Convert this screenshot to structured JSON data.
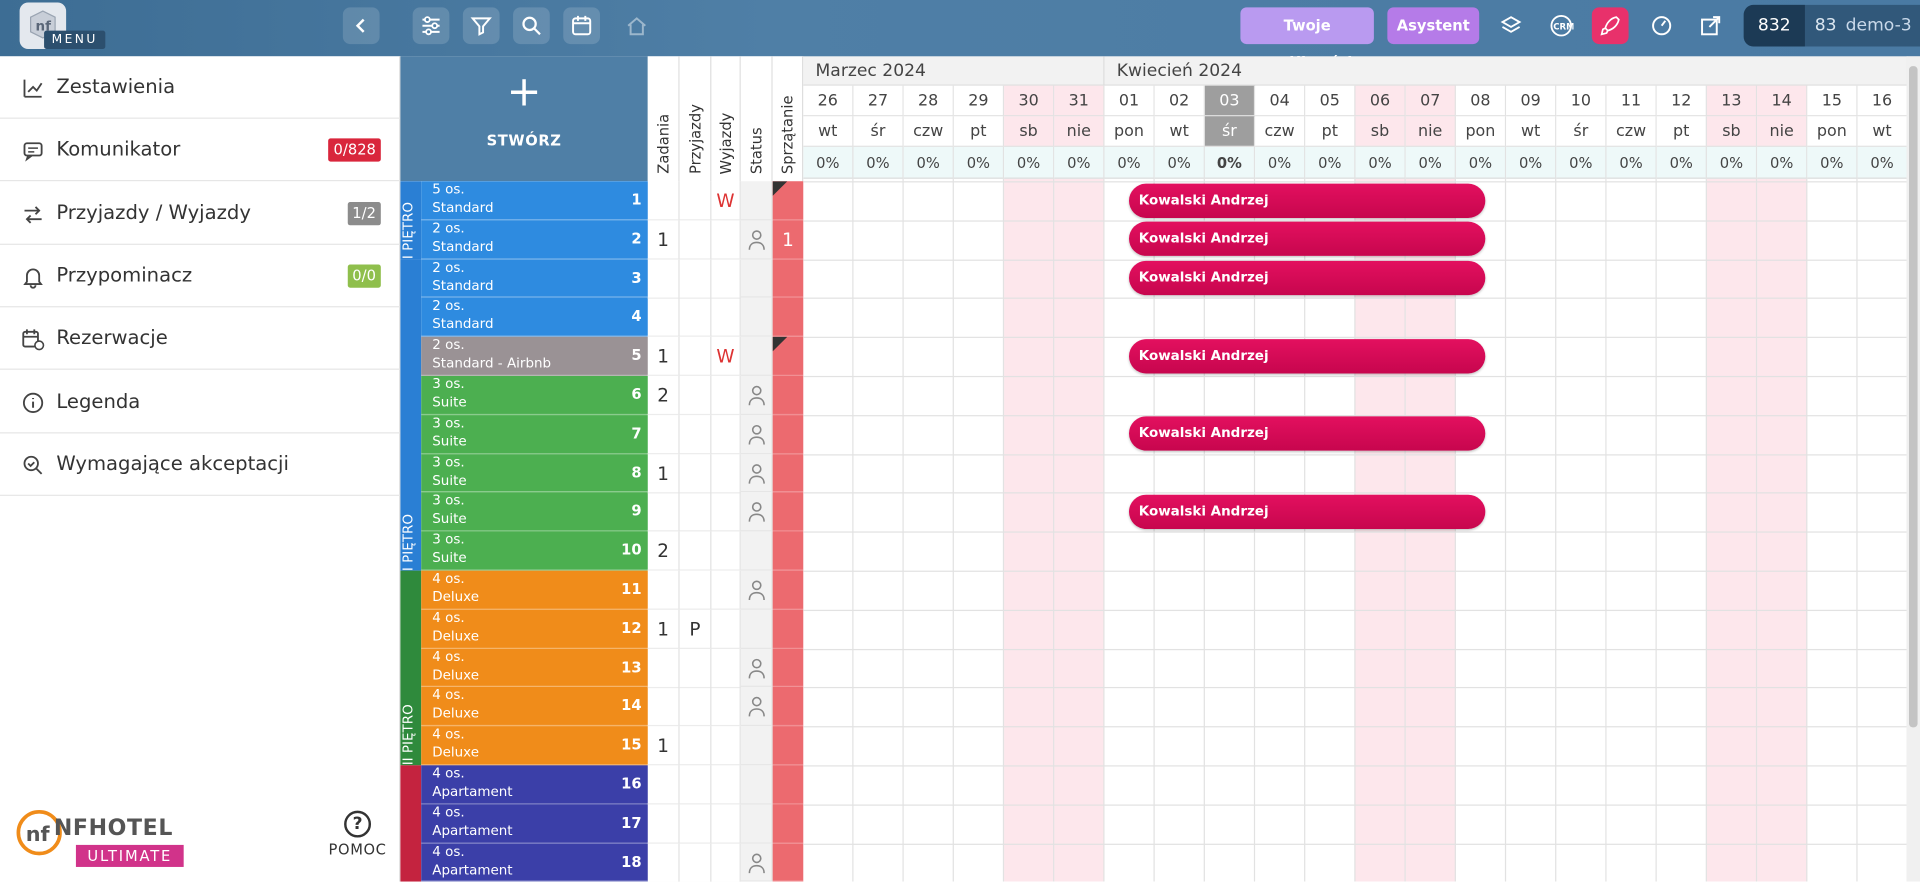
{
  "topbar": {
    "menu_label": "MENU",
    "pill_possibilities": "Twoje możliwości",
    "pill_ai": "Asystent AI",
    "counter_main": "832",
    "counter_secondary": "83",
    "account": "demo-3",
    "colors": {
      "possibilities": "#b99af0",
      "ai": "#b57be8",
      "rocket": "#e8316b"
    }
  },
  "sidebar": {
    "items": [
      {
        "label": "Zestawienia",
        "icon": "chart-icon"
      },
      {
        "label": "Komunikator",
        "icon": "chat-icon",
        "badge": "0/828",
        "badge_color": "#d9263c"
      },
      {
        "label": "Przyjazdy / Wyjazdy",
        "icon": "arrows-icon",
        "badge": "1/2",
        "badge_color": "#8c8c8c"
      },
      {
        "label": "Przypominacz",
        "icon": "bell-icon",
        "badge": "0/0",
        "badge_color": "#8fbf4c"
      },
      {
        "label": "Rezerwacje",
        "icon": "calendar-clock-icon"
      },
      {
        "label": "Legenda",
        "icon": "info-icon"
      },
      {
        "label": "Wymagające akceptacji",
        "icon": "search-check-icon"
      }
    ],
    "logo_text": "NFHOTEL",
    "logo_sub": "ULTIMATE",
    "help_label": "POMOC"
  },
  "create": {
    "label": "STWÓRZ"
  },
  "columns": {
    "tasks": "Zadania",
    "arrivals": "Przyjazdy",
    "departures": "Wyjazdy",
    "status": "Status",
    "cleaning": "Sprzątanie"
  },
  "floors": [
    {
      "label": "I PIĘTRO",
      "color": "#2a7fd4"
    },
    {
      "label": "I PIĘTRO",
      "color": "#2a7fd4"
    },
    {
      "label": "II PIĘTRO",
      "color": "#2f8a3c"
    }
  ],
  "rooms": [
    {
      "num": "1",
      "cap": "5 os.",
      "type": "Standard",
      "color": "#2e8be0",
      "tasks": "",
      "arr": "",
      "dep": "W",
      "status": false,
      "clean": "",
      "flag": true
    },
    {
      "num": "2",
      "cap": "2 os.",
      "type": "Standard",
      "color": "#2e8be0",
      "tasks": "1",
      "arr": "",
      "dep": "",
      "status": true,
      "clean": "1",
      "flag": false
    },
    {
      "num": "3",
      "cap": "2 os.",
      "type": "Standard",
      "color": "#2e8be0",
      "tasks": "",
      "arr": "",
      "dep": "",
      "status": false,
      "clean": "",
      "flag": false
    },
    {
      "num": "4",
      "cap": "2 os.",
      "type": "Standard",
      "color": "#2e8be0",
      "tasks": "",
      "arr": "",
      "dep": "",
      "status": false,
      "clean": "",
      "flag": false
    },
    {
      "num": "5",
      "cap": "2 os.",
      "type": "Standard - Airbnb",
      "color": "#9a9295",
      "tasks": "1",
      "arr": "",
      "dep": "W",
      "status": false,
      "clean": "",
      "flag": true
    },
    {
      "num": "6",
      "cap": "3 os.",
      "type": "Suite",
      "color": "#4caf50",
      "tasks": "2",
      "arr": "",
      "dep": "",
      "status": true,
      "clean": "",
      "flag": false
    },
    {
      "num": "7",
      "cap": "3 os.",
      "type": "Suite",
      "color": "#4caf50",
      "tasks": "",
      "arr": "",
      "dep": "",
      "status": true,
      "clean": "",
      "flag": false
    },
    {
      "num": "8",
      "cap": "3 os.",
      "type": "Suite",
      "color": "#4caf50",
      "tasks": "1",
      "arr": "",
      "dep": "",
      "status": true,
      "clean": "",
      "flag": false
    },
    {
      "num": "9",
      "cap": "3 os.",
      "type": "Suite",
      "color": "#4caf50",
      "tasks": "",
      "arr": "",
      "dep": "",
      "status": true,
      "clean": "",
      "flag": false
    },
    {
      "num": "10",
      "cap": "3 os.",
      "type": "Suite",
      "color": "#4caf50",
      "tasks": "2",
      "arr": "",
      "dep": "",
      "status": false,
      "clean": "",
      "flag": false
    },
    {
      "num": "11",
      "cap": "4 os.",
      "type": "Deluxe",
      "color": "#f08c1a",
      "tasks": "",
      "arr": "",
      "dep": "",
      "status": true,
      "clean": "",
      "flag": false
    },
    {
      "num": "12",
      "cap": "4 os.",
      "type": "Deluxe",
      "color": "#f08c1a",
      "tasks": "1",
      "arr": "P",
      "dep": "",
      "status": false,
      "clean": "",
      "flag": false
    },
    {
      "num": "13",
      "cap": "4 os.",
      "type": "Deluxe",
      "color": "#f08c1a",
      "tasks": "",
      "arr": "",
      "dep": "",
      "status": true,
      "clean": "",
      "flag": false
    },
    {
      "num": "14",
      "cap": "4 os.",
      "type": "Deluxe",
      "color": "#f08c1a",
      "tasks": "",
      "arr": "",
      "dep": "",
      "status": true,
      "clean": "",
      "flag": false
    },
    {
      "num": "15",
      "cap": "4 os.",
      "type": "Deluxe",
      "color": "#f08c1a",
      "tasks": "1",
      "arr": "",
      "dep": "",
      "status": false,
      "clean": "",
      "flag": false
    },
    {
      "num": "16",
      "cap": "4 os.",
      "type": "Apartament",
      "color": "#3b3fa8",
      "tasks": "",
      "arr": "",
      "dep": "",
      "status": false,
      "clean": "",
      "flag": false
    },
    {
      "num": "17",
      "cap": "4 os.",
      "type": "Apartament",
      "color": "#3b3fa8",
      "tasks": "",
      "arr": "",
      "dep": "",
      "status": false,
      "clean": "",
      "flag": false
    },
    {
      "num": "18",
      "cap": "4 os.",
      "type": "Apartament",
      "color": "#3b3fa8",
      "tasks": "",
      "arr": "",
      "dep": "",
      "status": true,
      "clean": "",
      "flag": false
    }
  ],
  "months": [
    "Marzec 2024",
    "Kwiecień 2024"
  ],
  "days": [
    {
      "n": "26",
      "d": "wt",
      "p": "0%",
      "we": false
    },
    {
      "n": "27",
      "d": "śr",
      "p": "0%",
      "we": false
    },
    {
      "n": "28",
      "d": "czw",
      "p": "0%",
      "we": false
    },
    {
      "n": "29",
      "d": "pt",
      "p": "0%",
      "we": false
    },
    {
      "n": "30",
      "d": "sb",
      "p": "0%",
      "we": true
    },
    {
      "n": "31",
      "d": "nie",
      "p": "0%",
      "we": true
    },
    {
      "n": "01",
      "d": "pon",
      "p": "0%",
      "we": false
    },
    {
      "n": "02",
      "d": "wt",
      "p": "0%",
      "we": false
    },
    {
      "n": "03",
      "d": "śr",
      "p": "0%",
      "we": false,
      "today": true
    },
    {
      "n": "04",
      "d": "czw",
      "p": "0%",
      "we": false
    },
    {
      "n": "05",
      "d": "pt",
      "p": "0%",
      "we": false
    },
    {
      "n": "06",
      "d": "sb",
      "p": "0%",
      "we": true
    },
    {
      "n": "07",
      "d": "nie",
      "p": "0%",
      "we": true
    },
    {
      "n": "08",
      "d": "pon",
      "p": "0%",
      "we": false
    },
    {
      "n": "09",
      "d": "wt",
      "p": "0%",
      "we": false
    },
    {
      "n": "10",
      "d": "śr",
      "p": "0%",
      "we": false
    },
    {
      "n": "11",
      "d": "czw",
      "p": "0%",
      "we": false
    },
    {
      "n": "12",
      "d": "pt",
      "p": "0%",
      "we": false
    },
    {
      "n": "13",
      "d": "sb",
      "p": "0%",
      "we": true
    },
    {
      "n": "14",
      "d": "nie",
      "p": "0%",
      "we": true
    },
    {
      "n": "15",
      "d": "pon",
      "p": "0%",
      "we": false
    },
    {
      "n": "16",
      "d": "wt",
      "p": "0%",
      "we": false
    }
  ],
  "reservations": [
    {
      "room": "1",
      "guest": "Kowalski Andrzej",
      "from": "01",
      "to": "08"
    },
    {
      "room": "2",
      "guest": "Kowalski Andrzej",
      "from": "01",
      "to": "08"
    },
    {
      "room": "3",
      "guest": "Kowalski Andrzej",
      "from": "01",
      "to": "08"
    },
    {
      "room": "5",
      "guest": "Kowalski Andrzej",
      "from": "01",
      "to": "08"
    },
    {
      "room": "7",
      "guest": "Kowalski Andrzej",
      "from": "01",
      "to": "08"
    },
    {
      "room": "9",
      "guest": "Kowalski Andrzej",
      "from": "01",
      "to": "08"
    }
  ]
}
